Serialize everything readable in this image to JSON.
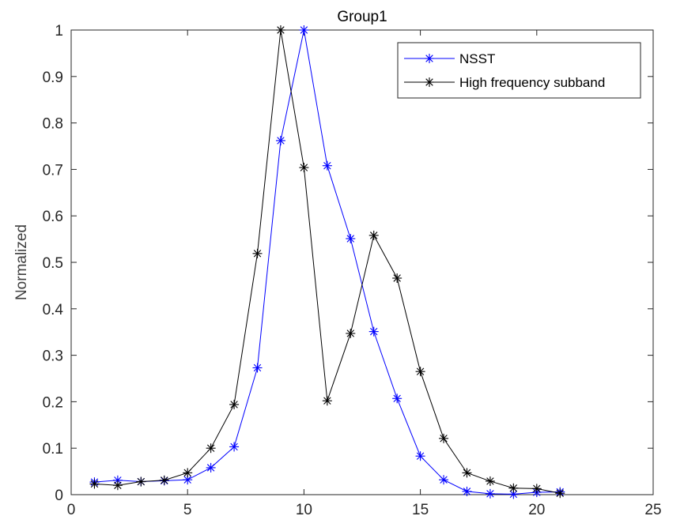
{
  "chart_data": {
    "type": "line",
    "title": "Group1",
    "xlabel": "",
    "ylabel": "Normalized",
    "xlim": [
      0,
      25
    ],
    "ylim": [
      0,
      1
    ],
    "xticks": [
      0,
      5,
      10,
      15,
      20,
      25
    ],
    "yticks": [
      0,
      0.1,
      0.2,
      0.3,
      0.4,
      0.5,
      0.6,
      0.7,
      0.8,
      0.9,
      1
    ],
    "grid": false,
    "legend_position": "top-right",
    "series": [
      {
        "name": "NSST",
        "color": "#0000ff",
        "marker": "asterisk",
        "x": [
          1,
          2,
          3,
          4,
          5,
          6,
          7,
          8,
          9,
          10,
          11,
          12,
          13,
          14,
          15,
          16,
          17,
          18,
          19,
          20,
          21
        ],
        "y": [
          0.027,
          0.031,
          0.028,
          0.03,
          0.032,
          0.058,
          0.103,
          0.273,
          0.762,
          1.0,
          0.708,
          0.551,
          0.351,
          0.207,
          0.083,
          0.032,
          0.007,
          0.002,
          0.001,
          0.005,
          0.006
        ]
      },
      {
        "name": "High frequency subband",
        "color": "#000000",
        "marker": "asterisk",
        "x": [
          1,
          2,
          3,
          4,
          5,
          6,
          7,
          8,
          9,
          10,
          11,
          12,
          13,
          14,
          15,
          16,
          17,
          18,
          19,
          20,
          21
        ],
        "y": [
          0.023,
          0.02,
          0.028,
          0.031,
          0.047,
          0.1,
          0.194,
          0.519,
          1.0,
          0.704,
          0.202,
          0.347,
          0.558,
          0.466,
          0.265,
          0.121,
          0.047,
          0.029,
          0.014,
          0.013,
          0.003
        ]
      }
    ]
  }
}
